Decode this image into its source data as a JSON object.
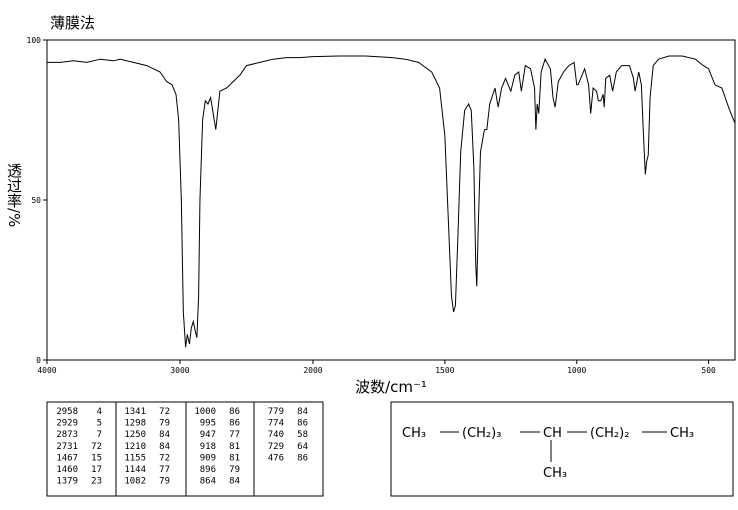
{
  "chart_data": {
    "type": "line",
    "title": "薄膜法",
    "xlabel": "波数/cm⁻¹",
    "ylabel": "透过率/%",
    "xlim": [
      4000,
      400
    ],
    "ylim": [
      0,
      100
    ],
    "xticks": [
      4000,
      3000,
      2000,
      1500,
      1000,
      500
    ],
    "yticks": [
      0,
      50,
      100
    ],
    "series": [
      {
        "color": "#000000",
        "x": [
          4000,
          3900,
          3800,
          3700,
          3600,
          3500,
          3450,
          3350,
          3250,
          3150,
          3100,
          3060,
          3030,
          3010,
          2990,
          2975,
          2958,
          2945,
          2929,
          2915,
          2900,
          2885,
          2873,
          2860,
          2850,
          2830,
          2810,
          2790,
          2770,
          2731,
          2700,
          2650,
          2600,
          2550,
          2500,
          2400,
          2300,
          2200,
          2100,
          2000,
          1900,
          1800,
          1700,
          1650,
          1600,
          1550,
          1520,
          1500,
          1485,
          1475,
          1467,
          1460,
          1450,
          1440,
          1425,
          1410,
          1400,
          1390,
          1383,
          1379,
          1374,
          1365,
          1350,
          1341,
          1330,
          1310,
          1298,
          1285,
          1270,
          1250,
          1235,
          1220,
          1210,
          1195,
          1175,
          1160,
          1155,
          1150,
          1144,
          1135,
          1120,
          1100,
          1090,
          1082,
          1070,
          1050,
          1030,
          1010,
          1000,
          995,
          985,
          970,
          955,
          947,
          938,
          925,
          918,
          909,
          900,
          896,
          890,
          875,
          864,
          850,
          830,
          800,
          785,
          779,
          774,
          765,
          755,
          748,
          740,
          735,
          729,
          722,
          710,
          690,
          650,
          600,
          550,
          520,
          500,
          476,
          450,
          420,
          400
        ],
        "values": [
          93,
          93,
          93.5,
          93,
          94,
          93.5,
          94,
          93,
          92,
          90,
          87,
          86,
          83,
          75,
          50,
          15,
          4,
          8,
          5,
          10,
          12,
          9,
          7,
          20,
          50,
          75,
          81,
          80,
          82,
          72,
          84,
          85,
          87,
          89,
          92,
          93,
          94,
          94.5,
          94.5,
          94.8,
          95,
          95,
          94.5,
          94,
          93,
          90,
          85,
          70,
          40,
          20,
          15,
          17,
          40,
          65,
          78,
          80,
          78,
          60,
          30,
          23,
          40,
          65,
          72,
          72,
          80,
          85,
          79,
          85,
          88,
          84,
          89,
          90,
          84,
          92,
          91,
          85,
          72,
          80,
          77,
          90,
          94,
          91,
          82,
          79,
          87,
          90,
          92,
          93,
          86,
          86,
          88,
          91,
          86,
          77,
          85,
          84,
          81,
          81,
          83,
          79,
          88,
          89,
          84,
          90,
          92,
          92,
          88,
          84,
          86,
          90,
          86,
          72,
          58,
          62,
          64,
          82,
          92,
          94,
          95,
          95,
          94,
          92,
          91,
          86,
          85,
          78,
          74
        ]
      }
    ]
  },
  "peak_table": {
    "columns": [
      [
        [
          2958,
          4
        ],
        [
          2929,
          5
        ],
        [
          2873,
          7
        ],
        [
          2731,
          72
        ],
        [
          1467,
          15
        ],
        [
          1460,
          17
        ],
        [
          1379,
          23
        ]
      ],
      [
        [
          1341,
          72
        ],
        [
          1298,
          79
        ],
        [
          1250,
          84
        ],
        [
          1210,
          84
        ],
        [
          1155,
          72
        ],
        [
          1144,
          77
        ],
        [
          1082,
          79
        ]
      ],
      [
        [
          1000,
          86
        ],
        [
          995,
          86
        ],
        [
          947,
          77
        ],
        [
          918,
          81
        ],
        [
          909,
          81
        ],
        [
          896,
          79
        ],
        [
          864,
          84
        ]
      ],
      [
        [
          779,
          84
        ],
        [
          774,
          86
        ],
        [
          740,
          58
        ],
        [
          729,
          64
        ],
        [
          476,
          86
        ]
      ]
    ]
  },
  "structure": {
    "groups": [
      "CH₃",
      "(CH₂)₃",
      "CH",
      "(CH₂)₂",
      "CH₃"
    ],
    "branch": "CH₃"
  }
}
